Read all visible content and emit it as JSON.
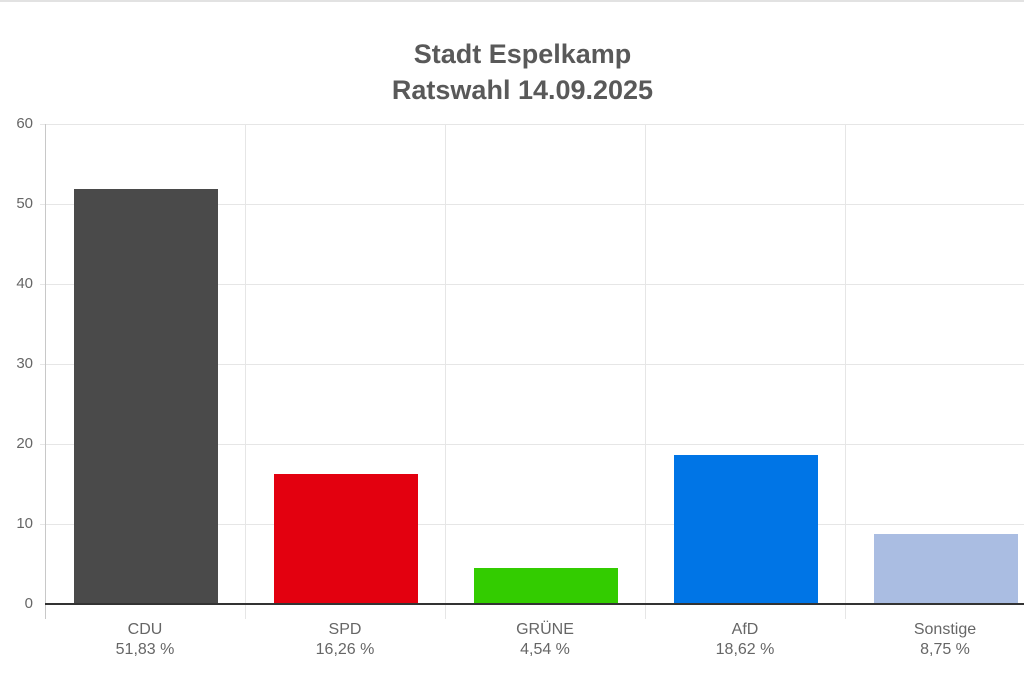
{
  "title": {
    "line1": "Stadt Espelkamp",
    "line2": "Ratswahl 14.09.2025"
  },
  "y_axis": {
    "ticks": [
      "0",
      "10",
      "20",
      "30",
      "40",
      "50",
      "60"
    ]
  },
  "parties": [
    {
      "name": "CDU",
      "label": "51,83 %",
      "value": 51.83,
      "color": "#4a4a4a"
    },
    {
      "name": "SPD",
      "label": "16,26 %",
      "value": 16.26,
      "color": "#e3000f"
    },
    {
      "name": "GRÜNE",
      "label": "4,54 %",
      "value": 4.54,
      "color": "#33cc00"
    },
    {
      "name": "AfD",
      "label": "18,62 %",
      "value": 18.62,
      "color": "#0075e6"
    },
    {
      "name": "Sonstige",
      "label": "8,75 %",
      "value": 8.75,
      "color": "#aabde2"
    }
  ],
  "chart_data": {
    "type": "bar",
    "title": "Stadt Espelkamp\nRatswahl 14.09.2025",
    "categories": [
      "CDU",
      "SPD",
      "GRÜNE",
      "AfD",
      "Sonstige"
    ],
    "values": [
      51.83,
      16.26,
      4.54,
      18.62,
      8.75
    ],
    "value_labels": [
      "51,83 %",
      "16,26 %",
      "4,54 %",
      "18,62 %",
      "8,75 %"
    ],
    "colors": [
      "#4a4a4a",
      "#e3000f",
      "#33cc00",
      "#0075e6",
      "#aabde2"
    ],
    "xlabel": "",
    "ylabel": "",
    "ylim": [
      0,
      60
    ],
    "yticks": [
      0,
      10,
      20,
      30,
      40,
      50,
      60
    ],
    "grid": true,
    "legend": "none"
  }
}
